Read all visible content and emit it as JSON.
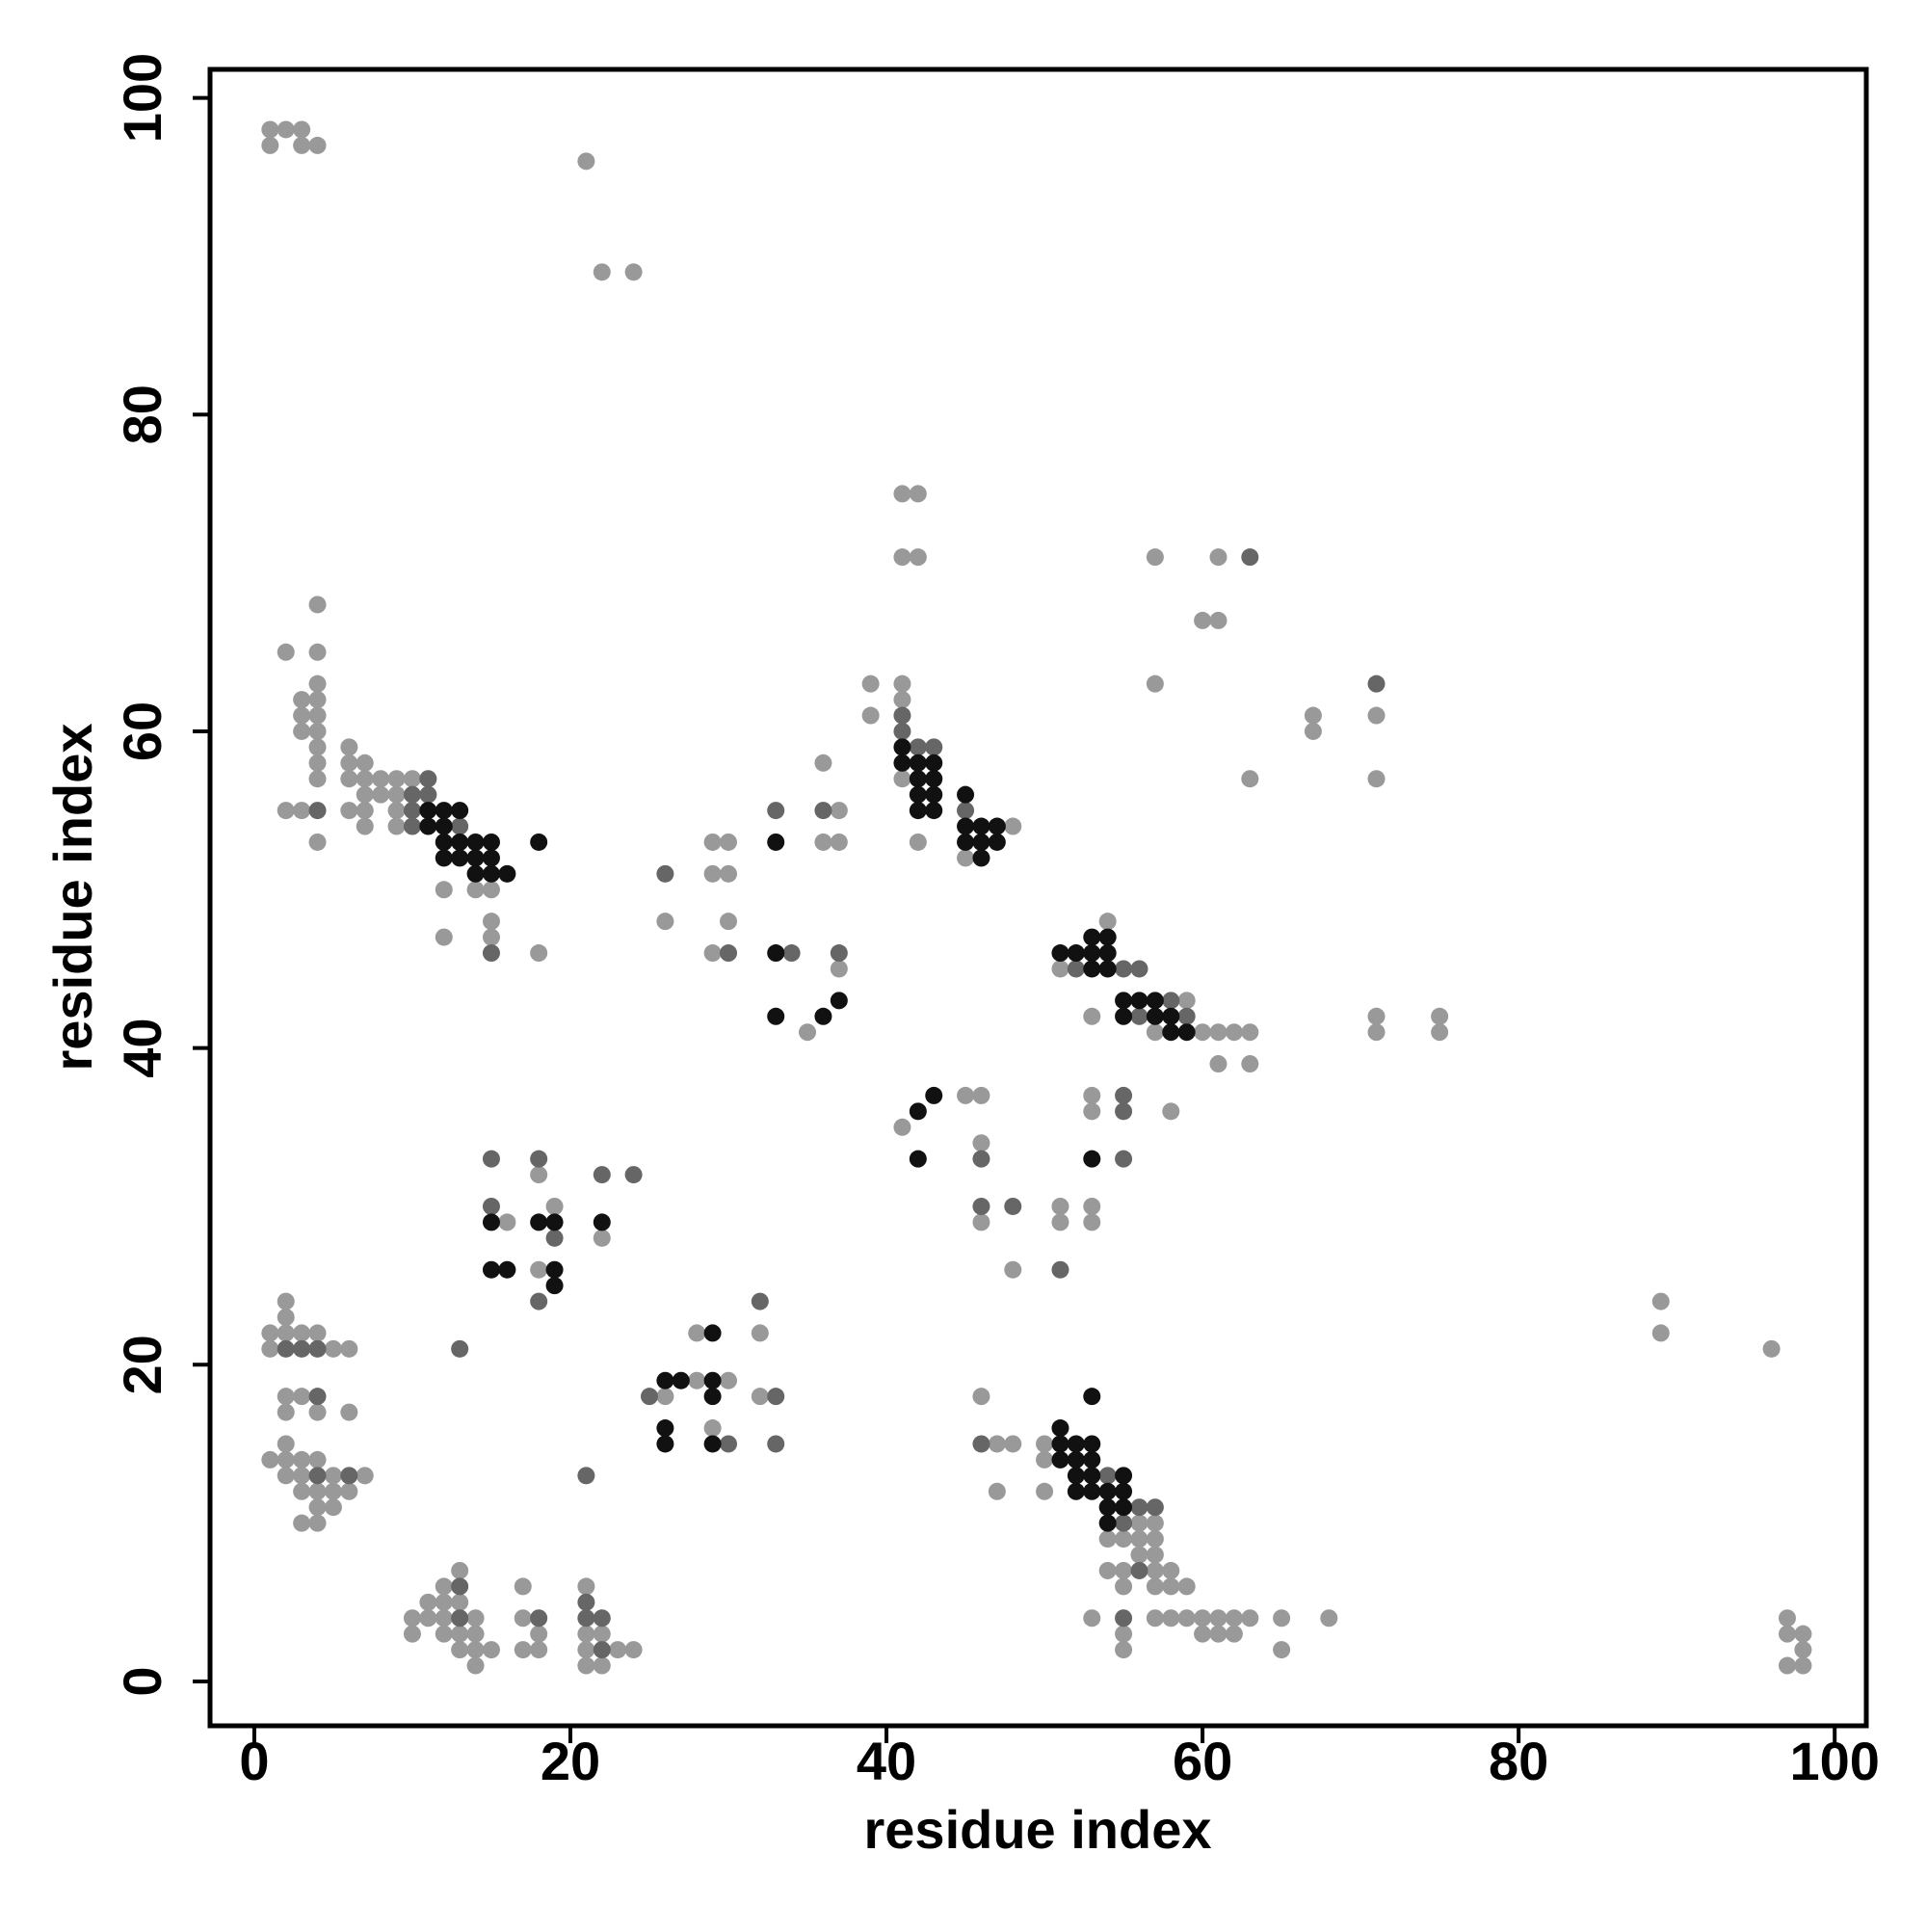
{
  "chart_data": {
    "type": "scatter",
    "xlabel": "residue index",
    "ylabel": "residue index",
    "xlim": [
      -2.8,
      102
    ],
    "ylim": [
      -2.8,
      101.8
    ],
    "xticks": [
      0,
      20,
      40,
      60,
      80,
      100
    ],
    "yticks": [
      0,
      20,
      40,
      60,
      80,
      100
    ],
    "grid": false,
    "series": [
      {
        "color": "#999999",
        "x": [
          1,
          2,
          3,
          1,
          3,
          4,
          21,
          22,
          24,
          4,
          2,
          4,
          3,
          4,
          3,
          4,
          3,
          4,
          4,
          4,
          4,
          4,
          2,
          3,
          4,
          6,
          6,
          7,
          6,
          7,
          8,
          9,
          10,
          6,
          7,
          7,
          7,
          8,
          9,
          9,
          9,
          12,
          14,
          15,
          15,
          15,
          12,
          18,
          26,
          29,
          30,
          29,
          30,
          30,
          29,
          36,
          37,
          36,
          37,
          37,
          35,
          41,
          42,
          41,
          42,
          39,
          39,
          41,
          41,
          41,
          42,
          48,
          45,
          57,
          61,
          60,
          61,
          57,
          67,
          67,
          71,
          63,
          71,
          54,
          51,
          53,
          59,
          57,
          60,
          61,
          62,
          63,
          61,
          63,
          71,
          71,
          75,
          75,
          41,
          45,
          46,
          46,
          46,
          48,
          51,
          51,
          53,
          53,
          58,
          53,
          53,
          16,
          18,
          19,
          18,
          22,
          26,
          28,
          28,
          30,
          29,
          32,
          32,
          1,
          2,
          3,
          4,
          1,
          5,
          6,
          2,
          2,
          2,
          3,
          2,
          4,
          6,
          1,
          2,
          3,
          4,
          2,
          2,
          3,
          5,
          7,
          3,
          4,
          5,
          6,
          4,
          5,
          3,
          4,
          10,
          10,
          11,
          11,
          12,
          12,
          12,
          12,
          13,
          13,
          13,
          13,
          14,
          14,
          14,
          14,
          15,
          17,
          17,
          17,
          18,
          18,
          21,
          21,
          21,
          21,
          22,
          22,
          23,
          24,
          46,
          47,
          48,
          47,
          50,
          50,
          50,
          56,
          57,
          54,
          55,
          56,
          57,
          56,
          57,
          54,
          55,
          57,
          58,
          55,
          57,
          58,
          59,
          53,
          55,
          55,
          57,
          58,
          59,
          60,
          61,
          62,
          63,
          60,
          61,
          62,
          65,
          65,
          68,
          89,
          89,
          96,
          97,
          97,
          98,
          98,
          97,
          98
        ],
        "values": [
          98,
          98,
          98,
          97,
          97,
          97,
          96,
          89,
          89,
          68,
          65,
          65,
          62,
          63,
          61,
          62,
          60,
          61,
          60,
          59,
          58,
          57,
          55,
          55,
          53,
          59,
          58,
          58,
          57,
          57,
          57,
          57,
          57,
          55,
          55,
          54,
          56,
          56,
          56,
          55,
          54,
          50,
          50,
          50,
          48,
          47,
          47,
          46,
          48,
          53,
          53,
          51,
          51,
          48,
          46,
          58,
          55,
          53,
          53,
          45,
          41,
          75,
          75,
          71,
          71,
          63,
          61,
          63,
          62,
          57,
          53,
          54,
          52,
          71,
          71,
          67,
          67,
          63,
          61,
          60,
          61,
          57,
          57,
          48,
          45,
          42,
          43,
          41,
          41,
          41,
          41,
          41,
          39,
          39,
          42,
          41,
          42,
          41,
          35,
          37,
          37,
          34,
          29,
          26,
          30,
          29,
          37,
          36,
          36,
          30,
          29,
          29,
          32,
          30,
          26,
          28,
          18,
          22,
          19,
          19,
          16,
          22,
          18,
          22,
          22,
          22,
          22,
          21,
          21,
          21,
          24,
          23,
          18,
          18,
          17,
          17,
          17,
          14,
          14,
          14,
          14,
          15,
          13,
          13,
          13,
          13,
          12,
          12,
          12,
          12,
          11,
          11,
          10,
          10,
          4,
          3,
          5,
          4,
          6,
          5,
          4,
          3,
          7,
          5,
          3,
          2,
          4,
          3,
          2,
          1,
          2,
          6,
          4,
          2,
          3,
          2,
          6,
          3,
          2,
          1,
          3,
          1,
          2,
          2,
          18,
          15,
          15,
          12,
          15,
          14,
          12,
          10,
          10,
          9,
          9,
          9,
          9,
          8,
          8,
          7,
          7,
          7,
          7,
          6,
          6,
          6,
          6,
          4,
          3,
          2,
          4,
          4,
          4,
          4,
          4,
          4,
          4,
          3,
          3,
          3,
          4,
          2,
          4,
          24,
          22,
          21,
          4,
          3,
          3,
          2,
          1,
          1
        ]
      },
      {
        "color": "#666666",
        "x": [
          4,
          11,
          10,
          11,
          10,
          10,
          13,
          15,
          26,
          30,
          33,
          34,
          36,
          37,
          41,
          41,
          42,
          43,
          45,
          63,
          71,
          52,
          55,
          56,
          58,
          56,
          59,
          46,
          46,
          48,
          51,
          55,
          55,
          55,
          15,
          15,
          18,
          19,
          18,
          22,
          24,
          13,
          25,
          32,
          33,
          30,
          33,
          21,
          2,
          3,
          4,
          4,
          4,
          6,
          13,
          13,
          18,
          21,
          21,
          22,
          22,
          46,
          54,
          55,
          56,
          57,
          56,
          55
        ],
        "values": [
          55,
          57,
          56,
          56,
          55,
          54,
          54,
          46,
          51,
          46,
          55,
          46,
          55,
          46,
          61,
          60,
          59,
          59,
          55,
          71,
          63,
          45,
          45,
          45,
          43,
          42,
          42,
          33,
          30,
          30,
          26,
          37,
          36,
          33,
          33,
          30,
          33,
          28,
          24,
          32,
          32,
          21,
          18,
          24,
          18,
          15,
          15,
          13,
          21,
          21,
          21,
          18,
          13,
          13,
          6,
          4,
          4,
          5,
          4,
          4,
          2,
          15,
          13,
          10,
          11,
          11,
          7,
          4
        ]
      },
      {
        "color": "#111111",
        "x": [
          11,
          12,
          13,
          11,
          12,
          12,
          13,
          14,
          15,
          12,
          13,
          14,
          15,
          14,
          15,
          16,
          18,
          33,
          33,
          33,
          37,
          36,
          41,
          41,
          42,
          43,
          42,
          43,
          42,
          43,
          42,
          43,
          45,
          45,
          46,
          47,
          45,
          46,
          47,
          46,
          51,
          52,
          53,
          54,
          53,
          54,
          53,
          54,
          55,
          56,
          57,
          55,
          57,
          58,
          58,
          59,
          42,
          43,
          42,
          53,
          15,
          15,
          16,
          18,
          19,
          19,
          19,
          22,
          26,
          27,
          26,
          26,
          29,
          29,
          29,
          29,
          51,
          51,
          51,
          52,
          52,
          53,
          53,
          52,
          53,
          52,
          53,
          53,
          54,
          55,
          54,
          55,
          55,
          54
        ],
        "values": [
          55,
          55,
          55,
          54,
          54,
          53,
          53,
          53,
          53,
          52,
          52,
          52,
          52,
          51,
          51,
          51,
          53,
          53,
          46,
          42,
          43,
          42,
          59,
          58,
          58,
          58,
          57,
          57,
          56,
          56,
          55,
          55,
          56,
          54,
          54,
          54,
          53,
          53,
          53,
          52,
          46,
          46,
          47,
          47,
          46,
          46,
          45,
          45,
          43,
          43,
          43,
          42,
          42,
          42,
          41,
          41,
          36,
          37,
          33,
          33,
          29,
          26,
          26,
          29,
          29,
          26,
          25,
          29,
          19,
          19,
          16,
          15,
          22,
          19,
          18,
          15,
          16,
          15,
          14,
          15,
          14,
          15,
          18,
          13,
          14,
          12,
          13,
          12,
          12,
          13,
          11,
          11,
          12,
          10
        ]
      }
    ]
  }
}
